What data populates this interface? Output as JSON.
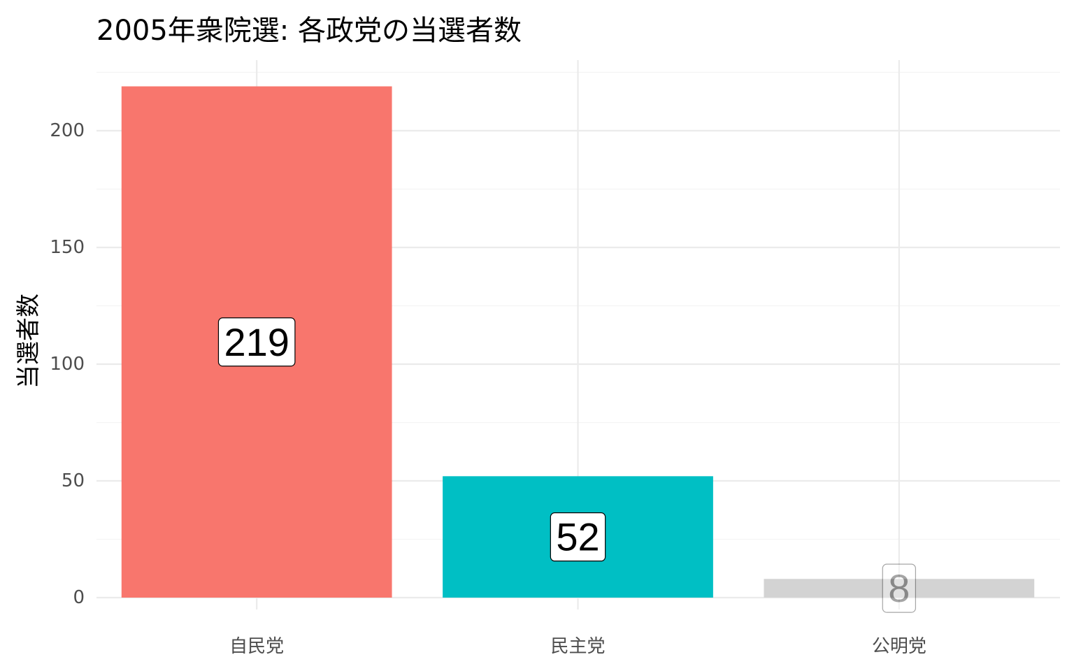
{
  "chart_data": {
    "type": "bar",
    "title": "2005年衆院選: 各政党の当選者数",
    "xlabel": "",
    "ylabel": "当選者数",
    "categories": [
      "自民党",
      "民主党",
      "公明党"
    ],
    "values": [
      219,
      52,
      8
    ],
    "data_labels": [
      "219",
      "52",
      "8"
    ],
    "bar_colors": [
      "#F8766D",
      "#00BFC4",
      "#D3D3D3"
    ],
    "bar_opacity": [
      1,
      1,
      1
    ],
    "label_opacity": [
      1,
      1,
      0.35
    ],
    "ylim": [
      0,
      230
    ],
    "yticks": [
      0,
      50,
      100,
      150,
      200
    ],
    "ytick_labels": [
      "0",
      "50",
      "100",
      "150",
      "200"
    ],
    "grid": true,
    "legend": "none"
  }
}
